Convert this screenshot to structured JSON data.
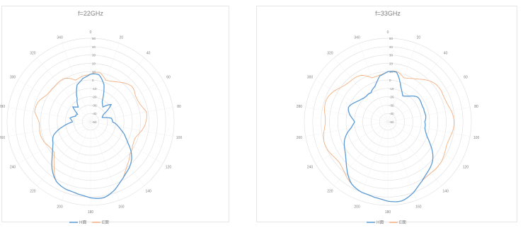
{
  "chart_data": [
    {
      "type": "line",
      "subtype": "polar",
      "title": "f=22GHz",
      "angle_unit": "deg",
      "angle_ticks": [
        0,
        20,
        40,
        60,
        80,
        100,
        120,
        140,
        160,
        180,
        200,
        220,
        240,
        260,
        280,
        300,
        320,
        340
      ],
      "angle_tick_labels": [
        "0",
        "20",
        "40",
        "60",
        "80",
        "100",
        "120",
        "140",
        "160",
        "180",
        "200",
        "220",
        "240",
        "260",
        "280",
        "300",
        "320",
        "340"
      ],
      "radial_ticks": [
        -50,
        -40,
        -30,
        -20,
        -10,
        0,
        10,
        20,
        30,
        40,
        50
      ],
      "radial_tick_labels": [
        "-50",
        "-40",
        "-30",
        "-20",
        "-10",
        "0",
        "10",
        "20",
        "30",
        "40",
        "50"
      ],
      "rlim": [
        -50,
        50
      ],
      "grid": true,
      "legend": "bottom",
      "series": [
        {
          "name": "H面",
          "color": "#5b9bd5",
          "theta": [
            0,
            10,
            20,
            30,
            40,
            50,
            60,
            70,
            80,
            90,
            100,
            110,
            120,
            130,
            140,
            150,
            160,
            170,
            180,
            190,
            200,
            210,
            220,
            230,
            240,
            250,
            260,
            270,
            280,
            290,
            300,
            310,
            320,
            330,
            340,
            350
          ],
          "r": [
            7,
            5,
            -3,
            -20,
            -27,
            -20,
            -32,
            -33,
            -25,
            -26,
            -16,
            -5,
            2,
            12,
            22,
            30,
            36,
            40,
            41,
            40,
            36,
            30,
            22,
            12,
            2,
            -5,
            -16,
            -26,
            -25,
            -33,
            -32,
            -20,
            -27,
            -20,
            -3,
            5
          ]
        },
        {
          "name": "E面",
          "color": "#f4b183",
          "theta": [
            0,
            10,
            20,
            30,
            40,
            50,
            60,
            70,
            80,
            90,
            100,
            110,
            120,
            130,
            140,
            150,
            160,
            170,
            180,
            190,
            200,
            210,
            220,
            230,
            240,
            250,
            260,
            270,
            280,
            290,
            300,
            310,
            320,
            330,
            340,
            350
          ],
          "r": [
            7,
            8,
            3,
            8,
            11,
            13,
            12,
            15,
            18,
            14,
            12,
            9,
            8,
            9,
            18,
            30,
            36,
            40,
            41,
            40,
            36,
            30,
            18,
            9,
            8,
            9,
            12,
            14,
            18,
            15,
            12,
            13,
            11,
            8,
            3,
            8
          ]
        }
      ]
    },
    {
      "type": "line",
      "subtype": "polar",
      "title": "f=33GHz",
      "angle_unit": "deg",
      "angle_ticks": [
        0,
        20,
        40,
        60,
        80,
        100,
        120,
        140,
        160,
        180,
        200,
        220,
        240,
        260,
        280,
        300,
        320,
        340
      ],
      "angle_tick_labels": [
        "0",
        "20",
        "40",
        "60",
        "80",
        "100",
        "120",
        "140",
        "160",
        "180",
        "200",
        "220",
        "240",
        "260",
        "280",
        "300",
        "320",
        "340"
      ],
      "radial_ticks": [
        -50,
        -40,
        -30,
        -20,
        -10,
        0,
        10,
        20,
        30,
        40,
        50
      ],
      "radial_tick_labels": [
        "-50",
        "-40",
        "-30",
        "-20",
        "-10",
        "0",
        "10",
        "20",
        "30",
        "40",
        "50"
      ],
      "rlim": [
        -50,
        50
      ],
      "grid": true,
      "legend": "bottom",
      "series": [
        {
          "name": "H面",
          "color": "#5b9bd5",
          "theta": [
            0,
            10,
            20,
            30,
            40,
            50,
            60,
            70,
            80,
            90,
            100,
            110,
            120,
            130,
            140,
            150,
            160,
            170,
            180,
            190,
            200,
            210,
            220,
            230,
            240,
            250,
            260,
            270,
            280,
            290,
            300,
            310,
            320,
            330,
            340,
            350
          ],
          "r": [
            10,
            8,
            -5,
            -12,
            -10,
            -6,
            -4,
            -2,
            -4,
            -8,
            -5,
            2,
            10,
            18,
            26,
            34,
            40,
            44,
            45,
            44,
            40,
            34,
            26,
            18,
            10,
            2,
            -5,
            -8,
            -4,
            -2,
            -4,
            -6,
            -10,
            -12,
            -5,
            8
          ]
        },
        {
          "name": "E面",
          "color": "#f4b183",
          "theta": [
            0,
            10,
            20,
            30,
            40,
            50,
            60,
            70,
            80,
            90,
            100,
            110,
            120,
            130,
            140,
            150,
            160,
            170,
            180,
            190,
            200,
            210,
            220,
            230,
            240,
            250,
            260,
            270,
            280,
            290,
            300,
            310,
            320,
            330,
            340,
            350
          ],
          "r": [
            10,
            9,
            6,
            12,
            16,
            20,
            24,
            26,
            27,
            27,
            28,
            28,
            28,
            28,
            30,
            34,
            40,
            44,
            45,
            44,
            40,
            34,
            30,
            28,
            28,
            28,
            28,
            27,
            27,
            26,
            24,
            20,
            16,
            12,
            6,
            9
          ]
        }
      ]
    }
  ]
}
